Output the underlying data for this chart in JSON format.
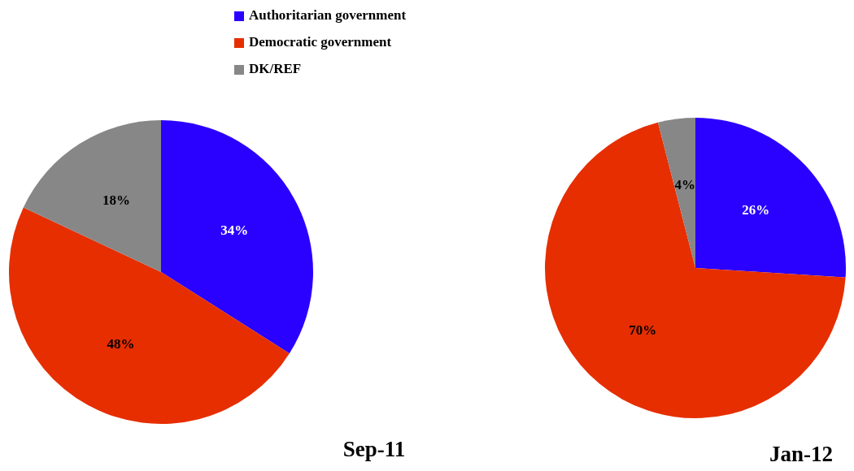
{
  "chart_data": [
    {
      "type": "pie",
      "title": "Sep-11",
      "categories": [
        "Authoritarian government",
        "Democratic government",
        "DK/REF"
      ],
      "values": [
        34,
        48,
        18
      ],
      "colors": [
        "#2a00ff",
        "#e62e00",
        "#878787"
      ],
      "value_labels": [
        "34%",
        "48%",
        "18%"
      ],
      "legend": "top"
    },
    {
      "type": "pie",
      "title": "Jan-12",
      "categories": [
        null,
        null,
        null
      ],
      "values": [
        26,
        70,
        4
      ],
      "colors": [
        "#2a00ff",
        "#e62e00",
        "#878787"
      ],
      "value_labels": [
        "26%",
        "70%",
        "4%"
      ]
    }
  ]
}
